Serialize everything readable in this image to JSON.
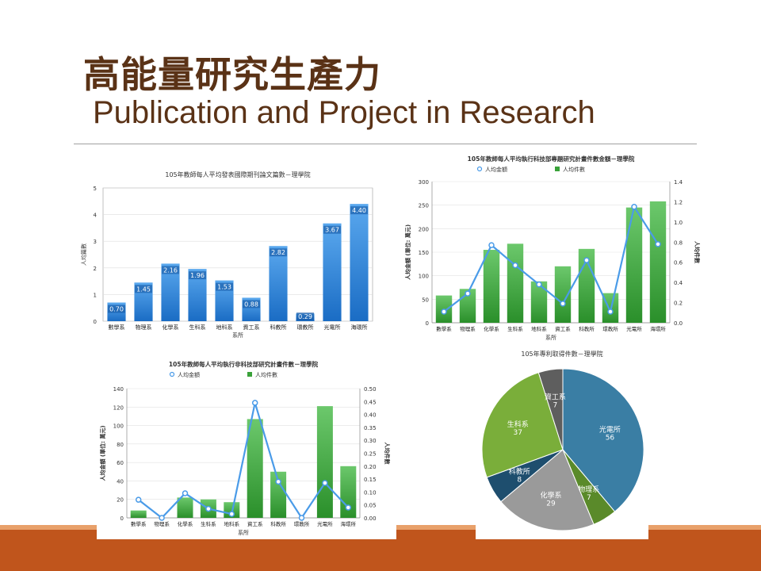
{
  "slide": {
    "title_zh": "高能量研究生產力",
    "title_en": "Publication and Project in Research"
  },
  "colors": {
    "title": "#5a3216",
    "footer": "#c0551c",
    "blue_bar": "#2a7fd4",
    "green_bar": "#3aa23a",
    "line": "#4a9be8"
  },
  "chart_data": [
    {
      "type": "bar",
      "title": "105年教師每人平均發表國際期刊論文篇數－理學院",
      "xlabel": "系所",
      "ylabel": "人均篇數",
      "ylim": [
        0,
        5
      ],
      "yticks": [
        "0",
        "1",
        "2",
        "3",
        "4",
        "5"
      ],
      "categories": [
        "數學系",
        "物理系",
        "化學系",
        "生科系",
        "地科系",
        "資工系",
        "科教所",
        "環教所",
        "光電所",
        "海環所"
      ],
      "values": [
        0.7,
        1.45,
        2.16,
        1.96,
        1.53,
        0.88,
        2.82,
        0.29,
        3.67,
        4.4
      ],
      "labels": [
        "0.70",
        "1.45",
        "2.16",
        "1.96",
        "1.53",
        "0.88",
        "2.82",
        "0.29",
        "3.67",
        "4.40"
      ]
    },
    {
      "type": "bar",
      "title": "105年教師每人平均執行科技部專題研究計畫件數金額－理學院",
      "xlabel": "系所",
      "ylabel": "人均金額 (單位: 萬元)",
      "y2label": "人均件數",
      "ylim": [
        0,
        300
      ],
      "y2lim": [
        0,
        1.4
      ],
      "yticks": [
        "0",
        "50",
        "100",
        "150",
        "200",
        "250",
        "300"
      ],
      "y2ticks": [
        "0.0",
        "0.2",
        "0.4",
        "0.6",
        "0.8",
        "1.0",
        "1.2",
        "1.4"
      ],
      "legend": [
        "人均金額",
        "人均件數"
      ],
      "categories": [
        "數學系",
        "物理系",
        "化學系",
        "生科系",
        "地科系",
        "資工系",
        "科教所",
        "環教所",
        "光電所",
        "海環所"
      ],
      "series": [
        {
          "name": "人均金額",
          "type": "bar",
          "values": [
            58,
            72,
            155,
            168,
            88,
            120,
            157,
            63,
            245,
            258
          ]
        },
        {
          "name": "人均件數",
          "type": "line",
          "values": [
            0.11,
            0.29,
            0.77,
            0.57,
            0.38,
            0.19,
            0.62,
            0.11,
            1.15,
            0.78
          ]
        }
      ]
    },
    {
      "type": "bar",
      "title": "105年教師每人平均執行非科技部研究計畫件數－理學院",
      "xlabel": "系所",
      "ylabel": "人均金額 (單位: 萬元)",
      "y2label": "人均件數",
      "ylim": [
        0,
        140
      ],
      "y2lim": [
        0,
        0.5
      ],
      "yticks": [
        "0",
        "20",
        "40",
        "60",
        "80",
        "100",
        "120",
        "140"
      ],
      "y2ticks": [
        "0.00",
        "0.05",
        "0.10",
        "0.15",
        "0.20",
        "0.25",
        "0.30",
        "0.35",
        "0.40",
        "0.45",
        "0.50"
      ],
      "legend": [
        "人均金額",
        "人均件數"
      ],
      "categories": [
        "數學系",
        "物理系",
        "化學系",
        "生科系",
        "地科系",
        "資工系",
        "科教所",
        "環教所",
        "光電所",
        "海環所"
      ],
      "series": [
        {
          "name": "人均金額",
          "type": "bar",
          "values": [
            8,
            0,
            22,
            20,
            17,
            107,
            50,
            0,
            121,
            56
          ]
        },
        {
          "name": "人均件數",
          "type": "line",
          "values": [
            0.07,
            0.0,
            0.095,
            0.035,
            0.015,
            0.445,
            0.14,
            0.0,
            0.135,
            0.04
          ]
        }
      ]
    },
    {
      "type": "pie",
      "title": "105年專利取得件數－理學院",
      "categories": [
        "光電所",
        "物理系",
        "化學系",
        "科教所",
        "生科系",
        "資工系"
      ],
      "values": [
        56,
        7,
        29,
        8,
        37,
        7
      ],
      "colors": [
        "#3a7ea4",
        "#5a8a2a",
        "#9a9a9a",
        "#1e4e6e",
        "#7aae3a",
        "#5e5e5e"
      ]
    }
  ]
}
